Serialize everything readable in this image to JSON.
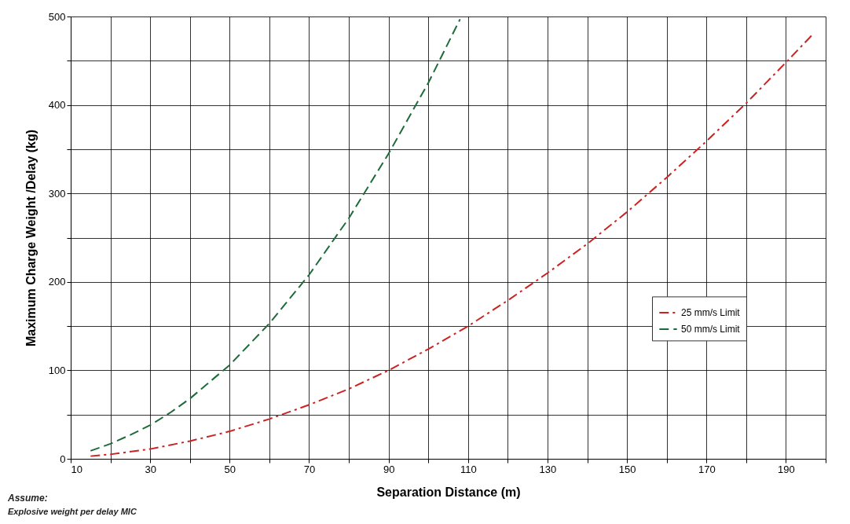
{
  "chart_data": {
    "type": "line",
    "xlabel": "Separation Distance (m)",
    "ylabel": "Maximum Charge Weight /Delay (kg)",
    "xlim": [
      10,
      200
    ],
    "ylim": [
      0,
      500
    ],
    "xticks": [
      10,
      {
        "value": 20,
        "label": null
      },
      30,
      {
        "value": 40,
        "label": null
      },
      50,
      {
        "value": 60,
        "label": null
      },
      70,
      {
        "value": 80,
        "label": null
      },
      90,
      {
        "value": 100,
        "label": null
      },
      110,
      {
        "value": 120,
        "label": null
      },
      130,
      {
        "value": 140,
        "label": null
      },
      150,
      {
        "value": 160,
        "label": null
      },
      170,
      {
        "value": 180,
        "label": null
      },
      190,
      {
        "value": 200,
        "label": null
      }
    ],
    "yticks": [
      0,
      {
        "value": 50,
        "label": null
      },
      100,
      {
        "value": 150,
        "label": null
      },
      200,
      {
        "value": 250,
        "label": null
      },
      300,
      {
        "value": 350,
        "label": null
      },
      400,
      {
        "value": 450,
        "label": null
      },
      500
    ],
    "grid": true,
    "legend": "right",
    "marker": "none",
    "series": [
      {
        "name": "25 mm/s Limit",
        "color": "#cc2222",
        "line_style": "dashdot",
        "x": [
          15,
          20,
          30,
          40,
          50,
          60,
          70,
          80,
          90,
          100,
          110,
          120,
          130,
          140,
          150,
          160,
          170,
          180,
          190,
          197
        ],
        "values": [
          3,
          5,
          11,
          20,
          31,
          45,
          61,
          79,
          100,
          124,
          150,
          179,
          210,
          243,
          279,
          318,
          359,
          402,
          448,
          481
        ]
      },
      {
        "name": "50 mm/s Limit",
        "color": "#1e6b3a",
        "line_style": "dashed",
        "x": [
          15,
          20,
          25,
          30,
          35,
          40,
          50,
          60,
          70,
          80,
          90,
          100,
          108
        ],
        "values": [
          9,
          17,
          27,
          38,
          52,
          68,
          106,
          153,
          208,
          272,
          345,
          425,
          497
        ]
      }
    ],
    "annotations": [
      "Assume:",
      "Explosive weight per delay MIC"
    ]
  }
}
